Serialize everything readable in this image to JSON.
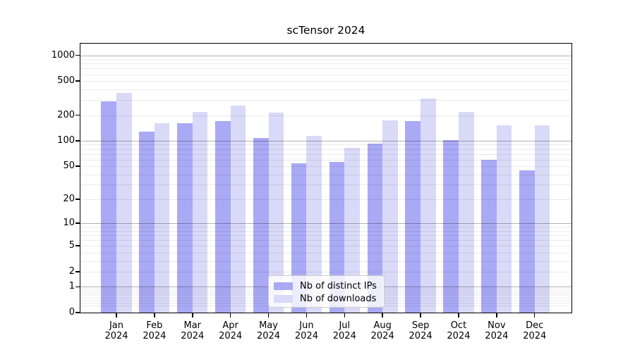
{
  "chart_data": {
    "type": "bar",
    "title": "scTensor 2024",
    "categories": [
      "Jan",
      "Feb",
      "Mar",
      "Apr",
      "May",
      "Jun",
      "Jul",
      "Aug",
      "Sep",
      "Oct",
      "Nov",
      "Dec"
    ],
    "category_sublabel": "2024",
    "series": [
      {
        "name": "Nb of distinct IPs",
        "color": "#a9a9f5",
        "values": [
          290,
          129,
          160,
          170,
          107,
          54,
          56,
          93,
          170,
          102,
          60,
          45
        ]
      },
      {
        "name": "Nb of downloads",
        "color": "#d9d9f8",
        "values": [
          365,
          160,
          220,
          258,
          212,
          115,
          82,
          172,
          315,
          220,
          152,
          152
        ]
      }
    ],
    "xlabel": "",
    "ylabel": "",
    "yscale": "log1p",
    "ylim": [
      0,
      1370
    ],
    "yticks": [
      0,
      1,
      2,
      5,
      10,
      20,
      50,
      100,
      200,
      500,
      1000
    ],
    "gridlines_major": [
      1,
      10,
      100,
      1000
    ],
    "gridlines_minor": [
      0.2,
      0.3,
      0.4,
      0.5,
      0.6,
      0.7,
      0.8,
      0.9,
      2,
      3,
      4,
      5,
      6,
      7,
      8,
      9,
      20,
      30,
      40,
      50,
      60,
      70,
      80,
      90,
      200,
      300,
      400,
      500,
      600,
      700,
      800,
      900
    ],
    "grid": "on",
    "legend_position": "lower center"
  }
}
